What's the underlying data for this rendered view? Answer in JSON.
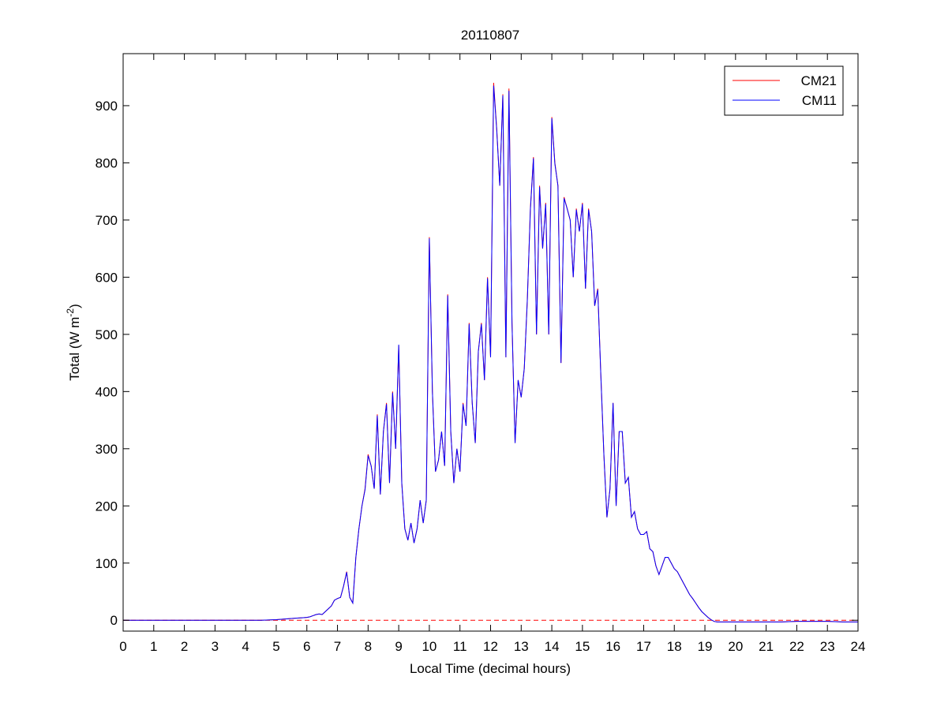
{
  "chart_data": {
    "type": "line",
    "title": "20110807",
    "x_label": "Local Time (decimal hours)",
    "y_label": {
      "main": "Total (W m",
      "sup": "-2",
      "end": ")"
    },
    "xlim": [
      0,
      24
    ],
    "ylim": [
      -19,
      991
    ],
    "xticks": [
      0,
      1,
      2,
      3,
      4,
      5,
      6,
      7,
      8,
      9,
      10,
      11,
      12,
      13,
      14,
      15,
      16,
      17,
      18,
      19,
      20,
      21,
      22,
      23,
      24
    ],
    "yticks": [
      0,
      100,
      200,
      300,
      400,
      500,
      600,
      700,
      800,
      900
    ],
    "reference_line": {
      "value": 0,
      "color": "#ff0000",
      "dashed": true
    },
    "legend": "upper right",
    "x": [
      0,
      0.5,
      1,
      1.5,
      2,
      2.5,
      3,
      3.5,
      4,
      4.5,
      5,
      5.5,
      6,
      6.1,
      6.2,
      6.3,
      6.4,
      6.5,
      6.6,
      6.7,
      6.8,
      6.9,
      7,
      7.1,
      7.2,
      7.3,
      7.4,
      7.5,
      7.6,
      7.7,
      7.8,
      7.9,
      8,
      8.1,
      8.2,
      8.3,
      8.4,
      8.5,
      8.6,
      8.7,
      8.8,
      8.9,
      9,
      9.1,
      9.2,
      9.3,
      9.4,
      9.5,
      9.6,
      9.7,
      9.8,
      9.9,
      10,
      10.1,
      10.2,
      10.3,
      10.4,
      10.5,
      10.6,
      10.7,
      10.8,
      10.9,
      11,
      11.1,
      11.2,
      11.3,
      11.4,
      11.5,
      11.6,
      11.7,
      11.8,
      11.9,
      12,
      12.1,
      12.2,
      12.3,
      12.4,
      12.5,
      12.6,
      12.7,
      12.8,
      12.9,
      13,
      13.1,
      13.2,
      13.3,
      13.4,
      13.5,
      13.6,
      13.7,
      13.8,
      13.9,
      14,
      14.1,
      14.2,
      14.3,
      14.4,
      14.5,
      14.6,
      14.7,
      14.8,
      14.9,
      15,
      15.1,
      15.2,
      15.3,
      15.4,
      15.5,
      15.6,
      15.7,
      15.8,
      15.9,
      16,
      16.1,
      16.2,
      16.3,
      16.4,
      16.5,
      16.6,
      16.7,
      16.8,
      16.9,
      17,
      17.1,
      17.2,
      17.3,
      17.4,
      17.5,
      17.6,
      17.7,
      17.8,
      17.9,
      18,
      18.1,
      18.2,
      18.3,
      18.4,
      18.5,
      18.6,
      18.7,
      18.8,
      18.9,
      19,
      19.1,
      19.2,
      19.3,
      19.4,
      19.5,
      20,
      20.5,
      21,
      21.5,
      22,
      22.5,
      23,
      23.5,
      24
    ],
    "series": [
      {
        "name": "CM21",
        "color": "#ff0000",
        "values": [
          0,
          0,
          0,
          0,
          0,
          0,
          0,
          0,
          0,
          0,
          1,
          3,
          5,
          6,
          8,
          10,
          11,
          10,
          15,
          20,
          25,
          35,
          38,
          40,
          60,
          85,
          40,
          30,
          110,
          160,
          200,
          230,
          290,
          270,
          230,
          360,
          220,
          330,
          380,
          240,
          400,
          300,
          480,
          240,
          160,
          140,
          170,
          135,
          160,
          210,
          170,
          210,
          670,
          400,
          260,
          280,
          330,
          270,
          570,
          330,
          240,
          300,
          260,
          380,
          340,
          520,
          380,
          310,
          470,
          520,
          420,
          600,
          460,
          940,
          860,
          760,
          920,
          460,
          930,
          520,
          310,
          420,
          390,
          440,
          560,
          720,
          810,
          500,
          760,
          650,
          730,
          500,
          880,
          800,
          760,
          450,
          740,
          720,
          700,
          600,
          720,
          680,
          730,
          580,
          720,
          680,
          550,
          580,
          430,
          290,
          180,
          230,
          380,
          200,
          330,
          330,
          240,
          250,
          180,
          190,
          160,
          150,
          150,
          155,
          125,
          120,
          95,
          80,
          95,
          110,
          110,
          100,
          90,
          85,
          75,
          65,
          55,
          45,
          38,
          30,
          22,
          15,
          10,
          5,
          1,
          -2,
          -3,
          -3,
          -3,
          -3,
          -3,
          -3,
          -2,
          -2,
          -2,
          -3,
          -3
        ]
      },
      {
        "name": "CM11",
        "color": "#0000ff",
        "values": [
          0,
          0,
          0,
          0,
          0,
          0,
          0,
          0,
          0,
          0,
          1,
          3,
          5,
          6,
          8,
          10,
          11,
          10,
          15,
          20,
          25,
          35,
          38,
          40,
          60,
          84,
          40,
          30,
          110,
          160,
          200,
          228,
          288,
          270,
          230,
          358,
          220,
          330,
          378,
          240,
          398,
          300,
          482,
          240,
          160,
          140,
          170,
          135,
          160,
          210,
          170,
          210,
          668,
          400,
          260,
          280,
          330,
          270,
          568,
          330,
          240,
          300,
          260,
          378,
          340,
          518,
          380,
          310,
          470,
          518,
          420,
          598,
          460,
          935,
          858,
          760,
          918,
          460,
          926,
          520,
          310,
          420,
          390,
          440,
          560,
          718,
          808,
          500,
          758,
          650,
          728,
          500,
          878,
          798,
          760,
          450,
          738,
          720,
          700,
          600,
          718,
          680,
          728,
          580,
          718,
          680,
          550,
          578,
          430,
          290,
          180,
          230,
          380,
          200,
          330,
          330,
          240,
          250,
          180,
          190,
          160,
          150,
          150,
          155,
          125,
          120,
          95,
          80,
          95,
          110,
          110,
          100,
          90,
          85,
          75,
          65,
          55,
          45,
          38,
          30,
          22,
          15,
          10,
          5,
          1,
          -2,
          -3,
          -3,
          -3,
          -3,
          -3,
          -3,
          -2,
          -2,
          -2,
          -3,
          -3
        ]
      }
    ]
  }
}
